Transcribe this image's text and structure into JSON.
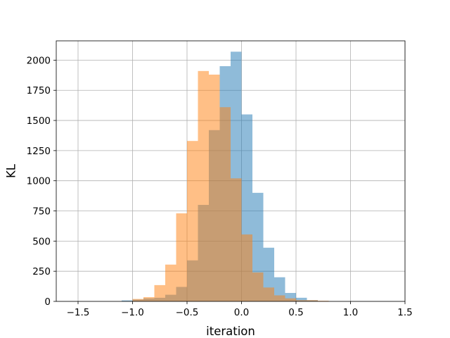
{
  "chart_data": {
    "type": "histogram",
    "xlabel": "iteration",
    "ylabel": "KL",
    "xlim": [
      -1.7,
      1.5
    ],
    "ylim": [
      0,
      2160
    ],
    "xticks": [
      -1.5,
      -1.0,
      -0.5,
      0.0,
      0.5,
      1.0,
      1.5
    ],
    "xtick_labels": [
      "−1.5",
      "−1.0",
      "−0.5",
      "0.0",
      "0.5",
      "1.0",
      "1.5"
    ],
    "yticks": [
      0,
      250,
      500,
      750,
      1000,
      1250,
      1500,
      1750,
      2000
    ],
    "ytick_labels": [
      "0",
      "250",
      "500",
      "750",
      "1000",
      "1250",
      "1500",
      "1750",
      "2000"
    ],
    "grid": true,
    "legend": "none",
    "series": [
      {
        "color": "#1f77b4",
        "opacity": 0.5,
        "bin_edges": [
          -1.1,
          -1.0,
          -0.9,
          -0.8,
          -0.7,
          -0.6,
          -0.5,
          -0.4,
          -0.3,
          -0.2,
          -0.1,
          0.0,
          0.1,
          0.2,
          0.3,
          0.4,
          0.5,
          0.6,
          0.7
        ],
        "counts": [
          8,
          15,
          25,
          30,
          55,
          120,
          340,
          800,
          1420,
          1950,
          2070,
          1550,
          900,
          445,
          200,
          70,
          30,
          10
        ]
      },
      {
        "color": "#ff7f0e",
        "opacity": 0.5,
        "bin_edges": [
          -1.0,
          -0.9,
          -0.8,
          -0.7,
          -0.6,
          -0.5,
          -0.4,
          -0.3,
          -0.2,
          -0.1,
          0.0,
          0.1,
          0.2,
          0.3,
          0.4,
          0.5,
          0.6,
          0.7,
          0.8
        ],
        "counts": [
          20,
          35,
          135,
          305,
          730,
          1330,
          1910,
          1880,
          1610,
          1020,
          555,
          240,
          115,
          50,
          25,
          10,
          10,
          5
        ]
      }
    ]
  }
}
